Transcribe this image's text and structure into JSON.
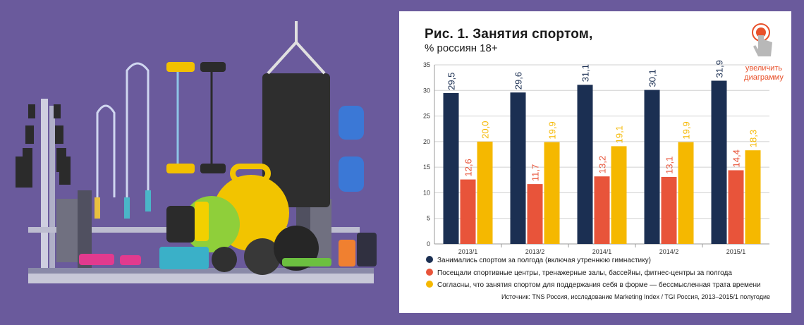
{
  "card": {
    "title": "Рис. 1. Занятия спортом,",
    "subtitle": "% россиян 18+",
    "zoom_line1": "увеличить",
    "zoom_line2": "диаграмму",
    "source": "Источник: TNS Россия, исследование Marketing Index / TGI Россия, 2013–2015/1 полугодие"
  },
  "chart_data": {
    "type": "bar",
    "title": "Рис. 1. Занятия спортом,",
    "subtitle": "% россиян 18+",
    "categories": [
      "2013/1",
      "2013/2",
      "2014/1",
      "2014/2",
      "2015/1"
    ],
    "ylim": [
      0,
      35
    ],
    "yticks": [
      0,
      5,
      10,
      15,
      20,
      25,
      30,
      35
    ],
    "grid": true,
    "legend_position": "bottom",
    "series": [
      {
        "name": "Занимались спортом за полгода (включая утреннюю гимнастику)",
        "color": "#1b2f52",
        "values": [
          29.5,
          29.6,
          31.1,
          30.1,
          31.9
        ],
        "labels": [
          "29,5",
          "29,6",
          "31,1",
          "30,1",
          "31,9"
        ]
      },
      {
        "name": "Посещали спортивные центры, тренажерные залы, бассейны, фитнес-центры за полгода",
        "color": "#e8543a",
        "values": [
          12.6,
          11.7,
          13.2,
          13.1,
          14.4
        ],
        "labels": [
          "12,6",
          "11,7",
          "13,2",
          "13,1",
          "14,4"
        ]
      },
      {
        "name": "Согласны, что занятия спортом  для поддержания себя в форме — бессмысленная трата времени",
        "color": "#f5b800",
        "values": [
          20.0,
          19.9,
          19.1,
          19.9,
          18.3
        ],
        "labels": [
          "20,0",
          "19,9",
          "19,1",
          "19,9",
          "18,3"
        ]
      }
    ]
  }
}
